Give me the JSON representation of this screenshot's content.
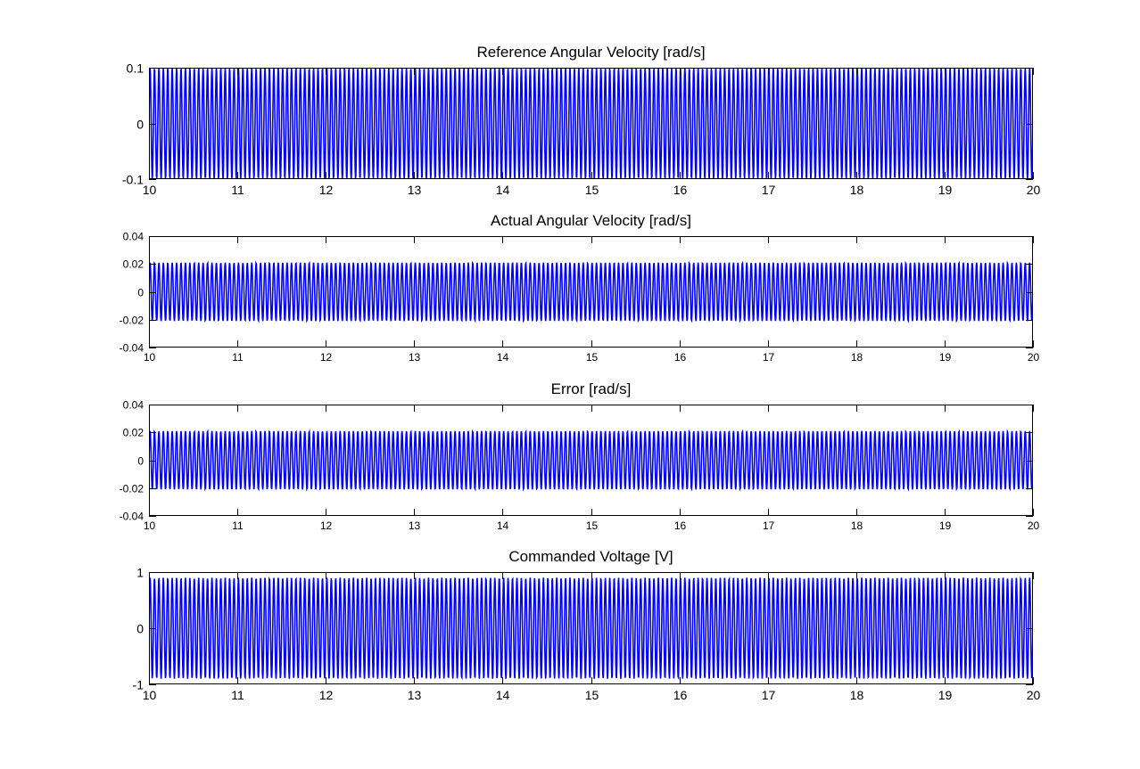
{
  "chart_data": [
    {
      "type": "line",
      "title": "Reference Angular Velocity [rad/s]",
      "xlabel": "",
      "ylabel": "",
      "xlim": [
        10,
        20
      ],
      "ylim": [
        -0.1,
        0.1
      ],
      "xticks": [
        "10",
        "11",
        "12",
        "13",
        "14",
        "15",
        "16",
        "17",
        "18",
        "19",
        "20"
      ],
      "yticks": [
        "-0.1",
        "0",
        "0.1"
      ],
      "color": "#0000ff",
      "grid": false,
      "signal": {
        "frequency_hz": 20,
        "peak_amplitude": 0.1
      }
    },
    {
      "type": "line",
      "title": "Actual Angular Velocity [rad/s]",
      "xlabel": "",
      "ylabel": "",
      "xlim": [
        10,
        20
      ],
      "ylim": [
        -0.04,
        0.04
      ],
      "xticks": [
        "10",
        "11",
        "12",
        "13",
        "14",
        "15",
        "16",
        "17",
        "18",
        "19",
        "20"
      ],
      "yticks": [
        "-0.04",
        "-0.02",
        "0",
        "0.02",
        "0.04"
      ],
      "color": "#0000ff",
      "grid": false,
      "signal": {
        "frequency_hz": 20,
        "peak_amplitude": 0.021
      }
    },
    {
      "type": "line",
      "title": "Error [rad/s]",
      "xlabel": "",
      "ylabel": "",
      "xlim": [
        10,
        20
      ],
      "ylim": [
        -0.04,
        0.04
      ],
      "xticks": [
        "10",
        "11",
        "12",
        "13",
        "14",
        "15",
        "16",
        "17",
        "18",
        "19",
        "20"
      ],
      "yticks": [
        "-0.04",
        "-0.02",
        "0",
        "0.02",
        "0.04"
      ],
      "color": "#0000ff",
      "grid": false,
      "signal": {
        "frequency_hz": 20,
        "peak_amplitude": 0.021
      }
    },
    {
      "type": "line",
      "title": "Commanded Voltage [V]",
      "xlabel": "",
      "ylabel": "",
      "xlim": [
        10,
        20
      ],
      "ylim": [
        -1,
        1
      ],
      "xticks": [
        "10",
        "11",
        "12",
        "13",
        "14",
        "15",
        "16",
        "17",
        "18",
        "19",
        "20"
      ],
      "yticks": [
        "-1",
        "0",
        "1"
      ],
      "color": "#0000ff",
      "grid": false,
      "signal": {
        "frequency_hz": 20,
        "peak_amplitude": 0.9
      }
    }
  ]
}
